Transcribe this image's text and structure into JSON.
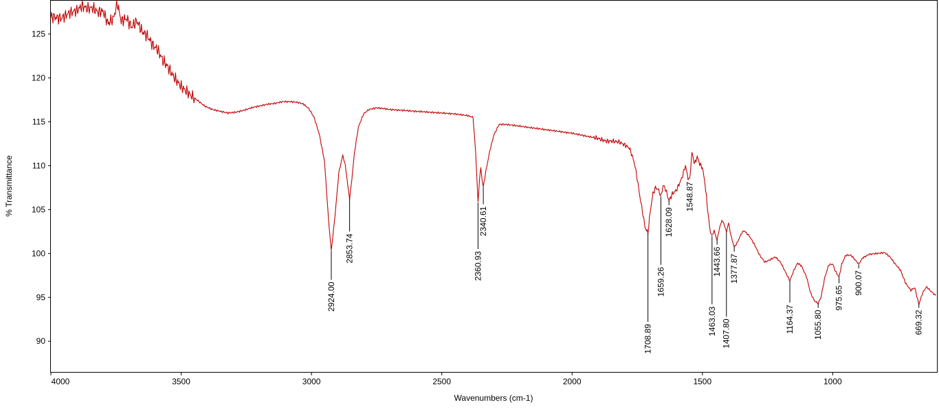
{
  "chart_data": {
    "type": "line",
    "title": "",
    "xlabel": "Wavenumbers (cm-1)",
    "ylabel": "% Transmittance",
    "xlim": [
      4000,
      600
    ],
    "ylim": [
      86.5,
      128.8
    ],
    "x_reversed": true,
    "grid": false,
    "line_color": "#c00000",
    "x_ticks": [
      4000,
      3500,
      3000,
      2500,
      2000,
      1500,
      1000
    ],
    "y_ticks": [
      90,
      95,
      100,
      105,
      110,
      115,
      120,
      125
    ],
    "series": [
      {
        "points": [
          [
            4000,
            127.0
          ],
          [
            3960,
            126.8
          ],
          [
            3930,
            127.4
          ],
          [
            3900,
            127.7
          ],
          [
            3880,
            128.2
          ],
          [
            3860,
            127.9
          ],
          [
            3840,
            128.0
          ],
          [
            3820,
            127.5
          ],
          [
            3800,
            127.6
          ],
          [
            3780,
            126.2
          ],
          [
            3760,
            126.8
          ],
          [
            3745,
            128.5
          ],
          [
            3730,
            126.5
          ],
          [
            3710,
            126.8
          ],
          [
            3690,
            125.8
          ],
          [
            3670,
            126.5
          ],
          [
            3650,
            125.3
          ],
          [
            3630,
            124.8
          ],
          [
            3610,
            123.8
          ],
          [
            3590,
            123.2
          ],
          [
            3570,
            122.0
          ],
          [
            3550,
            121.2
          ],
          [
            3530,
            120.2
          ],
          [
            3500,
            119.0
          ],
          [
            3470,
            118.2
          ],
          [
            3440,
            117.5
          ],
          [
            3410,
            116.8
          ],
          [
            3380,
            116.4
          ],
          [
            3350,
            116.2
          ],
          [
            3320,
            116.0
          ],
          [
            3290,
            116.1
          ],
          [
            3260,
            116.3
          ],
          [
            3230,
            116.6
          ],
          [
            3200,
            116.8
          ],
          [
            3170,
            117.0
          ],
          [
            3140,
            117.1
          ],
          [
            3110,
            117.3
          ],
          [
            3080,
            117.3
          ],
          [
            3050,
            117.2
          ],
          [
            3030,
            117.0
          ],
          [
            3010,
            116.5
          ],
          [
            2990,
            115.5
          ],
          [
            2970,
            113.6
          ],
          [
            2950,
            110.5
          ],
          [
            2935,
            104.0
          ],
          [
            2924,
            100.3
          ],
          [
            2910,
            104.2
          ],
          [
            2895,
            109.2
          ],
          [
            2880,
            111.2
          ],
          [
            2870,
            110.0
          ],
          [
            2860,
            107.6
          ],
          [
            2853.74,
            106.2
          ],
          [
            2845,
            108.5
          ],
          [
            2835,
            111.5
          ],
          [
            2820,
            114.4
          ],
          [
            2800,
            115.9
          ],
          [
            2780,
            116.4
          ],
          [
            2750,
            116.6
          ],
          [
            2720,
            116.5
          ],
          [
            2700,
            116.4
          ],
          [
            2650,
            116.3
          ],
          [
            2600,
            116.2
          ],
          [
            2550,
            116.1
          ],
          [
            2500,
            116.0
          ],
          [
            2450,
            115.9
          ],
          [
            2400,
            115.7
          ],
          [
            2380,
            115.5
          ],
          [
            2370,
            111.5
          ],
          [
            2360.93,
            105.8
          ],
          [
            2355,
            108.5
          ],
          [
            2350,
            109.8
          ],
          [
            2345,
            108.3
          ],
          [
            2340.61,
            107.6
          ],
          [
            2330,
            109.5
          ],
          [
            2315,
            111.8
          ],
          [
            2300,
            113.5
          ],
          [
            2280,
            114.7
          ],
          [
            2250,
            114.7
          ],
          [
            2200,
            114.5
          ],
          [
            2150,
            114.3
          ],
          [
            2100,
            114.1
          ],
          [
            2050,
            113.9
          ],
          [
            2000,
            113.7
          ],
          [
            1950,
            113.4
          ],
          [
            1900,
            113.1
          ],
          [
            1870,
            112.8
          ],
          [
            1850,
            112.8
          ],
          [
            1820,
            112.7
          ],
          [
            1800,
            112.4
          ],
          [
            1780,
            112.0
          ],
          [
            1770,
            111.2
          ],
          [
            1760,
            110.2
          ],
          [
            1750,
            108.5
          ],
          [
            1740,
            106.5
          ],
          [
            1730,
            104.8
          ],
          [
            1720,
            103.0
          ],
          [
            1708.89,
            102.3
          ],
          [
            1700,
            104.8
          ],
          [
            1690,
            106.8
          ],
          [
            1680,
            107.5
          ],
          [
            1670,
            107.3
          ],
          [
            1665,
            107.0
          ],
          [
            1659.26,
            106.5
          ],
          [
            1650,
            107.8
          ],
          [
            1640,
            107.2
          ],
          [
            1628.09,
            106.0
          ],
          [
            1615,
            106.8
          ],
          [
            1600,
            107.2
          ],
          [
            1580,
            108.5
          ],
          [
            1565,
            110.0
          ],
          [
            1555,
            108.6
          ],
          [
            1548.87,
            108.4
          ],
          [
            1540,
            111.5
          ],
          [
            1530,
            110.2
          ],
          [
            1520,
            111.0
          ],
          [
            1510,
            110.2
          ],
          [
            1500,
            109.8
          ],
          [
            1490,
            108.0
          ],
          [
            1480,
            105.0
          ],
          [
            1470,
            102.5
          ],
          [
            1463.03,
            102.0
          ],
          [
            1455,
            102.6
          ],
          [
            1443.66,
            101.5
          ],
          [
            1435,
            102.8
          ],
          [
            1425,
            103.8
          ],
          [
            1415,
            103.2
          ],
          [
            1407.8,
            102.4
          ],
          [
            1400,
            103.5
          ],
          [
            1390,
            102.0
          ],
          [
            1377.87,
            100.7
          ],
          [
            1365,
            101.3
          ],
          [
            1350,
            102.3
          ],
          [
            1340,
            102.6
          ],
          [
            1320,
            102.0
          ],
          [
            1300,
            101.0
          ],
          [
            1280,
            99.8
          ],
          [
            1260,
            99.0
          ],
          [
            1240,
            99.3
          ],
          [
            1220,
            99.6
          ],
          [
            1200,
            99.0
          ],
          [
            1180,
            97.8
          ],
          [
            1164.37,
            96.9
          ],
          [
            1150,
            98.0
          ],
          [
            1135,
            98.9
          ],
          [
            1120,
            98.6
          ],
          [
            1100,
            97.3
          ],
          [
            1085,
            95.5
          ],
          [
            1070,
            94.6
          ],
          [
            1055.8,
            94.3
          ],
          [
            1045,
            95.0
          ],
          [
            1030,
            97.3
          ],
          [
            1015,
            98.7
          ],
          [
            1000,
            98.8
          ],
          [
            990,
            98.0
          ],
          [
            975.65,
            97.3
          ],
          [
            965,
            98.8
          ],
          [
            950,
            99.8
          ],
          [
            930,
            99.8
          ],
          [
            915,
            99.3
          ],
          [
            900.07,
            98.8
          ],
          [
            885,
            99.5
          ],
          [
            860,
            99.9
          ],
          [
            830,
            100.0
          ],
          [
            800,
            100.1
          ],
          [
            780,
            99.6
          ],
          [
            760,
            98.8
          ],
          [
            740,
            98.1
          ],
          [
            720,
            96.6
          ],
          [
            700,
            95.8
          ],
          [
            685,
            96.1
          ],
          [
            669.32,
            94.2
          ],
          [
            655,
            95.5
          ],
          [
            640,
            96.2
          ],
          [
            620,
            95.6
          ],
          [
            605,
            95.2
          ]
        ]
      }
    ],
    "annotations": [
      {
        "label": "2924.00",
        "x": 2924.0,
        "y": 100.3,
        "y_end": 97.0
      },
      {
        "label": "2853.74",
        "x": 2853.74,
        "y": 106.2,
        "y_end": 102.5
      },
      {
        "label": "2360.93",
        "x": 2360.93,
        "y": 105.8,
        "y_end": 100.5
      },
      {
        "label": "2340.61",
        "x": 2340.61,
        "y": 107.6,
        "y_end": 105.6
      },
      {
        "label": "1708.89",
        "x": 1708.89,
        "y": 102.3,
        "y_end": 92.2
      },
      {
        "label": "1659.26",
        "x": 1659.26,
        "y": 106.5,
        "y_end": 98.7
      },
      {
        "label": "1628.09",
        "x": 1628.09,
        "y": 106.0,
        "y_end": 105.5
      },
      {
        "label": "1548.87",
        "x": 1548.87,
        "y": 108.4,
        "y_end": 108.4
      },
      {
        "label": "1463.03",
        "x": 1463.03,
        "y": 102.0,
        "y_end": 94.2
      },
      {
        "label": "1443.66",
        "x": 1443.66,
        "y": 101.5,
        "y_end": 101.0
      },
      {
        "label": "1407.80",
        "x": 1407.8,
        "y": 102.4,
        "y_end": 92.8
      },
      {
        "label": "1377.87",
        "x": 1377.87,
        "y": 100.7,
        "y_end": 100.2
      },
      {
        "label": "1164.37",
        "x": 1164.37,
        "y": 96.9,
        "y_end": 94.4
      },
      {
        "label": "1055.80",
        "x": 1055.8,
        "y": 94.3,
        "y_end": 93.8
      },
      {
        "label": "975.65",
        "x": 975.65,
        "y": 97.3,
        "y_end": 96.6
      },
      {
        "label": "900.07",
        "x": 900.07,
        "y": 98.8,
        "y_end": 98.3
      },
      {
        "label": "669.32",
        "x": 669.32,
        "y": 94.2,
        "y_end": 93.8
      }
    ]
  }
}
